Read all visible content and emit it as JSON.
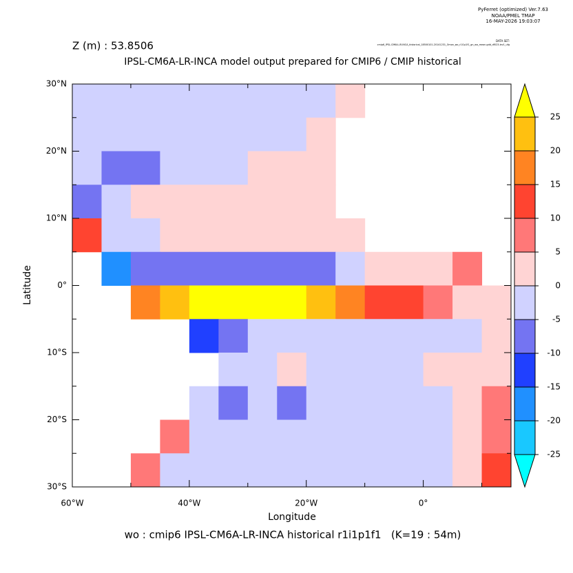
{
  "chart_data": {
    "type": "heatmap",
    "header": [
      "PyFerret (optimized) Ver.7.63",
      "NOAA/PMEL TMAP",
      "16-MAY-2026 19:03:07"
    ],
    "dataset_label": "DATA SET:",
    "dataset": "cmip6_IPSL-CM6A-LR-INCA_historical_18500101-20141231_Omon_wo_r1i1p1f1_gn_wo_mean.gdd_df023-lev1_ufg",
    "title": "Z (m) : 53.8506",
    "subtitle": "IPSL-CM6A-LR-INCA model output prepared for CMIP6 / CMIP historical",
    "xlabel": "Longitude",
    "ylabel": "Latitude",
    "footer": "wo : cmip6 IPSL-CM6A-LR-INCA historical r1i1p1f1   (K=19 : 54m)",
    "xlim": [
      -60,
      15
    ],
    "ylim": [
      -30,
      30
    ],
    "xticks": [
      {
        "value": -60,
        "label": "60°W"
      },
      {
        "value": -40,
        "label": "40°W"
      },
      {
        "value": -20,
        "label": "20°W"
      },
      {
        "value": 0,
        "label": "0°"
      }
    ],
    "xminor": [
      -50,
      -30,
      -10,
      10
    ],
    "yticks": [
      {
        "value": 30,
        "label": "30°N"
      },
      {
        "value": 20,
        "label": "20°N"
      },
      {
        "value": 10,
        "label": "10°N"
      },
      {
        "value": 0,
        "label": "0°"
      },
      {
        "value": -10,
        "label": "10°S"
      },
      {
        "value": -20,
        "label": "20°S"
      },
      {
        "value": -30,
        "label": "30°S"
      }
    ],
    "yminor": [
      25,
      15,
      5,
      -5,
      -15,
      -25
    ],
    "levels": [
      -25,
      -20,
      -15,
      -10,
      -5,
      0,
      5,
      10,
      15,
      20,
      25
    ],
    "colors": [
      "#00ffff",
      "#19c8ff",
      "#2090ff",
      "#2040ff",
      "#7474f2",
      "#d0d2ff",
      "#ffd4d4",
      "#ff7878",
      "#ff4430",
      "#ff8422",
      "#ffc010",
      "#ffff00"
    ],
    "z": [
      [
        -3,
        -3,
        -3,
        -3,
        -3,
        -3,
        -3,
        -3,
        -3,
        2,
        null,
        null,
        null,
        null,
        null
      ],
      [
        -3,
        -3,
        -3,
        -3,
        -3,
        -3,
        -3,
        -3,
        1,
        null,
        null,
        null,
        null,
        null,
        null
      ],
      [
        -3,
        -6,
        -6,
        -4,
        -3,
        -2,
        1,
        1,
        3,
        null,
        null,
        null,
        null,
        null,
        null
      ],
      [
        -6,
        -3,
        1,
        1,
        1,
        1,
        2,
        3,
        4,
        null,
        null,
        null,
        null,
        null,
        null
      ],
      [
        12,
        -5,
        -3,
        1,
        1,
        2,
        2,
        3,
        3,
        2,
        null,
        null,
        null,
        null,
        null
      ],
      [
        null,
        -20,
        -10,
        -8,
        -8,
        -10,
        -8,
        -8,
        -6,
        -3,
        2,
        3,
        4,
        6,
        null
      ],
      [
        null,
        null,
        18,
        22,
        25,
        28,
        28,
        26,
        20,
        15,
        12,
        10,
        8,
        4,
        1
      ],
      [
        null,
        null,
        null,
        null,
        -15,
        -6,
        -3,
        -2,
        -2,
        -2,
        -2,
        -2,
        -2,
        -2,
        2
      ],
      [
        null,
        null,
        null,
        null,
        null,
        -3,
        -2,
        1,
        -2,
        -2,
        -2,
        -2,
        1,
        1,
        4
      ],
      [
        null,
        null,
        null,
        null,
        -5,
        -6,
        -4,
        -6,
        -3,
        -2,
        -2,
        -2,
        -2,
        2,
        8
      ],
      [
        null,
        null,
        null,
        6,
        -4,
        -3,
        -2,
        -2,
        -2,
        -2,
        -2,
        -2,
        -2,
        1,
        6
      ],
      [
        null,
        null,
        5,
        -4,
        -2,
        -2,
        -2,
        -2,
        -2,
        -2,
        -2,
        -2,
        -2,
        1,
        12
      ]
    ]
  }
}
